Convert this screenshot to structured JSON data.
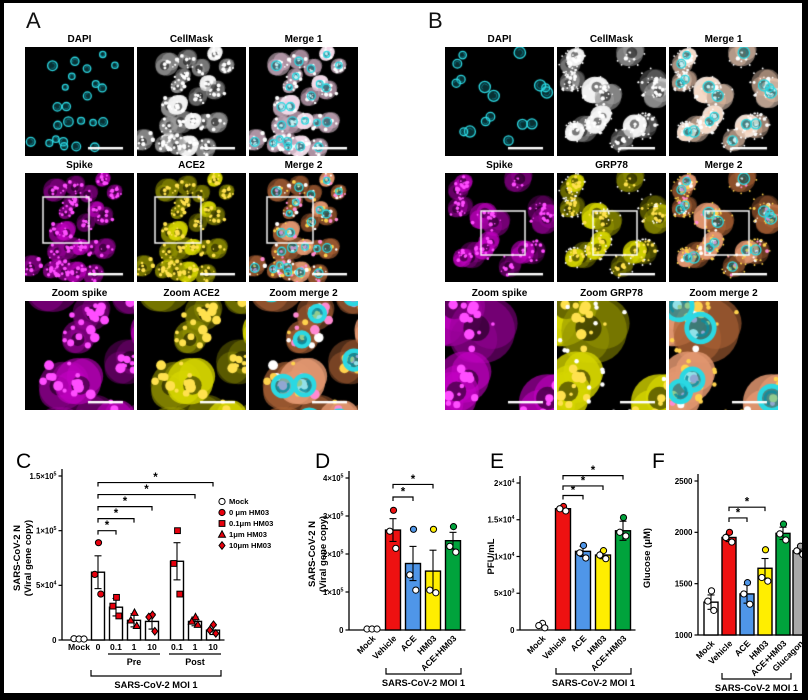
{
  "panel_a": {
    "label": "A",
    "tiles": [
      {
        "title": "DAPI",
        "channel": "dapi"
      },
      {
        "title": "CellMask",
        "channel": "cellmask"
      },
      {
        "title": "Merge 1",
        "channel": "merge1"
      },
      {
        "title": "Spike",
        "channel": "spike",
        "box": true
      },
      {
        "title": "ACE2",
        "channel": "yellow",
        "box": true
      },
      {
        "title": "Merge 2",
        "channel": "merge2",
        "box": true
      },
      {
        "title": "Zoom spike",
        "channel": "spike",
        "zoom": true
      },
      {
        "title": "Zoom ACE2",
        "channel": "yellow",
        "zoom": true
      },
      {
        "title": "Zoom merge 2",
        "channel": "merge2",
        "zoom": true
      }
    ]
  },
  "panel_b": {
    "label": "B",
    "tiles": [
      {
        "title": "DAPI",
        "channel": "dapi"
      },
      {
        "title": "CellMask",
        "channel": "cellmask"
      },
      {
        "title": "Merge 1",
        "channel": "merge1"
      },
      {
        "title": "Spike",
        "channel": "spike",
        "box": true
      },
      {
        "title": "GRP78",
        "channel": "yellow",
        "box": true
      },
      {
        "title": "Merge 2",
        "channel": "merge2",
        "box": true
      },
      {
        "title": "Zoom spike",
        "channel": "spike",
        "zoom": true
      },
      {
        "title": "Zoom GRP78",
        "channel": "yellow",
        "zoom": true
      },
      {
        "title": "Zoom merge 2",
        "channel": "merge2",
        "zoom": true
      }
    ]
  },
  "colors": {
    "red": "#ee1111",
    "blue": "#4f96e8",
    "yellow": "#ffee00",
    "green": "#00a33c",
    "gray": "#a8a8a8",
    "white": "#ffffff",
    "cyan": "#2bd8e2",
    "magenta": "#c000c0",
    "point_red": "#e8000d"
  },
  "chart_data": [
    {
      "panel_label": "C",
      "type": "bar",
      "ylabel_lines": [
        "SARS-CoV-2 N",
        "(Viral gene copy)"
      ],
      "ylim": [
        0,
        150000
      ],
      "grid": false,
      "yticks": [
        {
          "v": 0,
          "t": "0"
        },
        {
          "v": 50000,
          "t": "5×10",
          "s": "4"
        },
        {
          "v": 100000,
          "t": "1×10",
          "s": "5"
        },
        {
          "v": 150000,
          "t": "1.5×10",
          "s": "5"
        }
      ],
      "categories": [
        "Mock",
        "0",
        "0.1",
        "1",
        "10",
        "0.1",
        "1",
        "10"
      ],
      "values": [
        0,
        62000,
        30000,
        18000,
        17000,
        72000,
        17000,
        9000
      ],
      "errors": [
        0,
        15000,
        8000,
        6000,
        7000,
        17000,
        4000,
        4000
      ],
      "bar_colors": [
        "#ffffff",
        "#ffffff",
        "#ffffff",
        "#ffffff",
        "#ffffff",
        "#ffffff",
        "#ffffff",
        "#ffffff"
      ],
      "point_markers": [
        "circle-open",
        "circle",
        "square",
        "triangle",
        "diamond",
        "square",
        "triangle",
        "diamond"
      ],
      "point_color": "#e8000d",
      "points": [
        [
          1200,
          800,
          400
        ],
        [
          89000,
          60000,
          42000
        ],
        [
          39000,
          31000,
          22000
        ],
        [
          25000,
          18000,
          13000
        ],
        [
          23000,
          21000,
          8000
        ],
        [
          100000,
          70000,
          42000
        ],
        [
          21000,
          17000,
          14000
        ],
        [
          14000,
          9000,
          6000
        ]
      ],
      "legend": [
        {
          "marker": "circle-open",
          "label": "Mock"
        },
        {
          "marker": "circle",
          "label": "0 μm HM03"
        },
        {
          "marker": "square",
          "label": "0.1μm HM03"
        },
        {
          "marker": "triangle",
          "label": "1μm HM03"
        },
        {
          "marker": "diamond",
          "label": "10μm HM03"
        }
      ],
      "sig": [
        {
          "a": 1,
          "b": 2,
          "y": 100000,
          "label": "*"
        },
        {
          "a": 1,
          "b": 3,
          "y": 111000,
          "label": "*"
        },
        {
          "a": 1,
          "b": 4,
          "y": 122000,
          "label": "*"
        },
        {
          "a": 1,
          "b": 6,
          "y": 133000,
          "label": "*"
        },
        {
          "a": 1,
          "b": 7,
          "y": 144000,
          "label": "*"
        }
      ],
      "groups": [
        {
          "a": 2,
          "b": 4,
          "label": "Pre"
        },
        {
          "a": 5,
          "b": 7,
          "label": "Post"
        }
      ],
      "bottom_bracket": {
        "a": 1,
        "b": 7,
        "label": "SARS-CoV-2 MOI 1"
      },
      "xtick_style": "flat"
    },
    {
      "panel_label": "D",
      "type": "bar",
      "ylabel_lines": [
        "SARS-CoV-2 N",
        "(Viral gene copy)"
      ],
      "ylim": [
        0,
        400000
      ],
      "grid": false,
      "yticks": [
        {
          "v": 0,
          "t": "0"
        },
        {
          "v": 100000,
          "t": "1×10",
          "s": "5"
        },
        {
          "v": 200000,
          "t": "2×10",
          "s": "5"
        },
        {
          "v": 300000,
          "t": "3×10",
          "s": "5"
        },
        {
          "v": 400000,
          "t": "4×10",
          "s": "5"
        }
      ],
      "categories": [
        "Mock",
        "Vehicle",
        "ACE",
        "HM03",
        "ACE+HM03"
      ],
      "values": [
        0,
        263000,
        175000,
        155000,
        235000
      ],
      "errors": [
        0,
        30000,
        45000,
        55000,
        22000
      ],
      "bar_colors": [
        "#ffffff",
        "#ee1111",
        "#4f96e8",
        "#ffee00",
        "#00a33c"
      ],
      "points": [
        [
          2000,
          1200,
          500
        ],
        [
          315000,
          260000,
          215000
        ],
        [
          265000,
          145000,
          105000
        ],
        [
          265000,
          105000,
          98000
        ],
        [
          272000,
          220000,
          205000
        ]
      ],
      "sig": [
        {
          "a": 1,
          "b": 2,
          "y": 350000,
          "label": "*"
        },
        {
          "a": 1,
          "b": 3,
          "y": 383000,
          "label": "*"
        }
      ],
      "bottom_bracket": {
        "a": 1,
        "b": 4,
        "label": "SARS-CoV-2 MOI 1"
      },
      "xtick_style": "rot"
    },
    {
      "panel_label": "E",
      "type": "bar",
      "ylabel_lines": [
        "PFU/mL"
      ],
      "ylim": [
        0,
        20000
      ],
      "grid": false,
      "yticks": [
        {
          "v": 0,
          "t": "0"
        },
        {
          "v": 5000,
          "t": "5×10",
          "s": "3"
        },
        {
          "v": 10000,
          "t": "1×10",
          "s": "4"
        },
        {
          "v": 15000,
          "t": "1.5×10",
          "s": "4"
        },
        {
          "v": 20000,
          "t": "2×10",
          "s": "4"
        }
      ],
      "categories": [
        "Mock",
        "Vehicle",
        "ACE",
        "HM03",
        "ACE+HM03"
      ],
      "values": [
        0,
        16500,
        10700,
        10200,
        13500
      ],
      "errors": [
        0,
        300,
        700,
        500,
        1300
      ],
      "bar_colors": [
        "#ffffff",
        "#ee1111",
        "#4f96e8",
        "#ffee00",
        "#00a33c"
      ],
      "points": [
        [
          900,
          600,
          300
        ],
        [
          16800,
          16500,
          16200
        ],
        [
          11500,
          10500,
          9800
        ],
        [
          10800,
          10200,
          9700
        ],
        [
          15300,
          13300,
          12800
        ]
      ],
      "sig": [
        {
          "a": 1,
          "b": 2,
          "y": 18300,
          "label": "*"
        },
        {
          "a": 1,
          "b": 3,
          "y": 19600,
          "label": "*"
        },
        {
          "a": 1,
          "b": 4,
          "y": 21000,
          "label": "*"
        }
      ],
      "bottom_bracket": {
        "a": 1,
        "b": 4,
        "label": "SARS-CoV-2 MOI 1"
      },
      "xtick_style": "rot"
    },
    {
      "panel_label": "F",
      "type": "bar",
      "ylabel_lines": [
        "Glucose (μM)"
      ],
      "ylim": [
        1000,
        2500
      ],
      "grid": false,
      "yticks": [
        {
          "v": 1000,
          "t": "1000"
        },
        {
          "v": 1500,
          "t": "1500"
        },
        {
          "v": 2000,
          "t": "2000"
        },
        {
          "v": 2500,
          "t": "2500"
        }
      ],
      "categories": [
        "Mock",
        "Vehicle",
        "ACE",
        "HM03",
        "ACE+HM03",
        "Glucagon"
      ],
      "values": [
        1320,
        1950,
        1400,
        1650,
        1990,
        1820
      ],
      "errors": [
        70,
        40,
        90,
        95,
        60,
        30
      ],
      "bar_colors": [
        "#ffffff",
        "#ee1111",
        "#4f96e8",
        "#ffee00",
        "#00a33c",
        "#a8a8a8"
      ],
      "points": [
        [
          1430,
          1330,
          1240
        ],
        [
          2000,
          1950,
          1905
        ],
        [
          1510,
          1400,
          1300
        ],
        [
          1830,
          1560,
          1525
        ],
        [
          2080,
          1985,
          1925
        ],
        [
          1865,
          1820,
          1785
        ]
      ],
      "sig": [
        {
          "a": 1,
          "b": 2,
          "y": 2140,
          "label": "*"
        },
        {
          "a": 1,
          "b": 3,
          "y": 2245,
          "label": "*"
        }
      ],
      "bottom_bracket": {
        "a": 1,
        "b": 4,
        "label": "SARS-CoV-2 MOI 1"
      },
      "xtick_style": "rot"
    }
  ]
}
